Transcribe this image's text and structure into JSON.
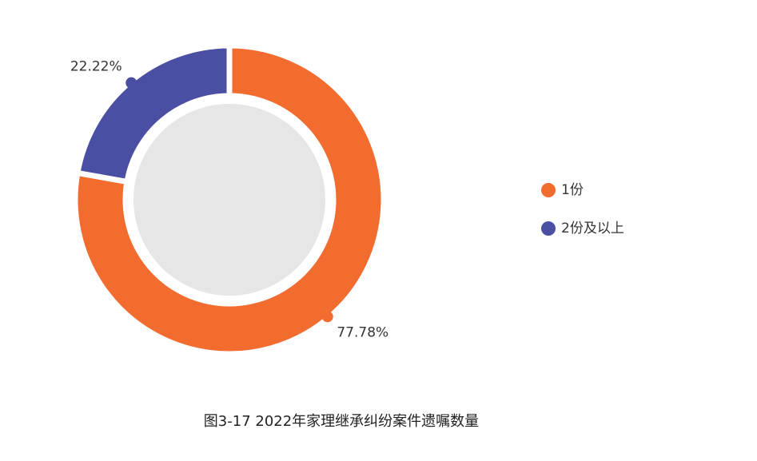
{
  "chart_data": {
    "type": "pie",
    "donut": true,
    "title": "图3-17  2022年家理继承纠纷案件遗嘱数量",
    "categories": [
      "1份",
      "2份及以上"
    ],
    "values": [
      77.78,
      22.22
    ],
    "value_labels": [
      "77.78%",
      "22.22%"
    ],
    "colors": [
      "#f26b2f",
      "#4a4fa3"
    ]
  }
}
